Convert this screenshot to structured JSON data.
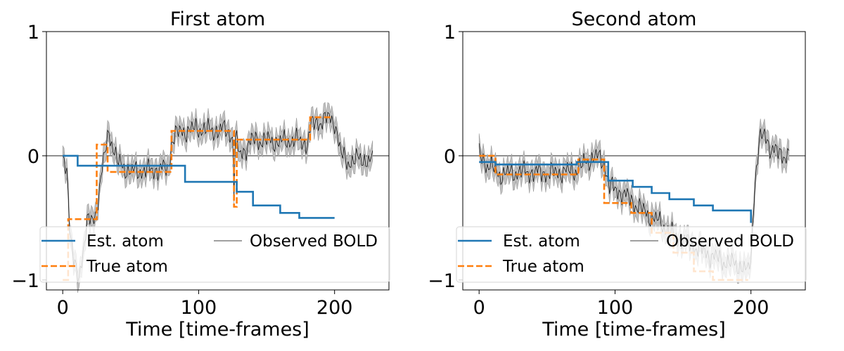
{
  "colors": {
    "est": "#1f77b4",
    "true": "#ff7f0e",
    "observed": "#000000",
    "band": "#bfbfbf"
  },
  "chart_data": [
    {
      "type": "line",
      "title": "First atom",
      "xlabel": "Time [time-frames]",
      "ylabel": "",
      "xlim": [
        -12,
        240
      ],
      "ylim": [
        -1.08,
        1
      ],
      "xticks": [
        0,
        100,
        200
      ],
      "yticks": [
        -1,
        0,
        1
      ],
      "ytick_labels": [
        "−1",
        "0",
        "1"
      ],
      "legend": {
        "placement": "lower-center",
        "entries": [
          "Est. atom",
          "True atom",
          "Observed BOLD"
        ]
      },
      "series": [
        {
          "name": "Est. atom",
          "style": "solid",
          "steps": [
            [
              0,
              0
            ],
            [
              11,
              -0.08
            ],
            [
              90,
              -0.21
            ],
            [
              128,
              -0.29
            ],
            [
              140,
              -0.4
            ],
            [
              160,
              -0.46
            ],
            [
              174,
              -0.5
            ],
            [
              200,
              -0.5
            ]
          ]
        },
        {
          "name": "True atom",
          "style": "dashed",
          "steps": [
            [
              0,
              -1
            ],
            [
              4,
              -0.51
            ],
            [
              25,
              0.09
            ],
            [
              33,
              -0.13
            ],
            [
              80,
              0.2
            ],
            [
              126,
              -0.41
            ],
            [
              128,
              0.13
            ],
            [
              182,
              0.31
            ],
            [
              198,
              0.31
            ]
          ]
        },
        {
          "name": "Observed BOLD",
          "style": "thin",
          "envelope": true,
          "x": [
            0,
            3,
            5,
            8,
            12,
            18,
            24,
            28,
            31,
            34,
            40,
            50,
            60,
            70,
            78,
            80,
            84,
            90,
            100,
            110,
            120,
            125,
            126,
            127,
            128,
            130,
            140,
            150,
            160,
            170,
            180,
            183,
            190,
            195,
            200,
            205,
            210,
            220,
            228
          ],
          "y": [
            0.0,
            -0.08,
            -0.55,
            -0.88,
            -0.97,
            -0.55,
            -0.48,
            -0.2,
            0.02,
            0.2,
            -0.05,
            -0.13,
            -0.12,
            -0.11,
            -0.1,
            0.12,
            0.18,
            0.2,
            0.22,
            0.2,
            0.21,
            0.15,
            -0.25,
            0.1,
            0.12,
            0.0,
            0.13,
            0.12,
            0.11,
            0.13,
            0.1,
            0.25,
            0.28,
            0.3,
            0.28,
            0.0,
            -0.05,
            -0.02,
            -0.05
          ]
        }
      ]
    },
    {
      "type": "line",
      "title": "Second atom",
      "xlabel": "Time [time-frames]",
      "ylabel": "",
      "xlim": [
        -12,
        240
      ],
      "ylim": [
        -1.08,
        1
      ],
      "xticks": [
        0,
        100,
        200
      ],
      "yticks": [
        -1,
        0,
        1
      ],
      "ytick_labels": [
        "−1",
        "0",
        "1"
      ],
      "legend": {
        "placement": "lower-center",
        "entries": [
          "Est. atom",
          "True atom",
          "Observed BOLD"
        ]
      },
      "series": [
        {
          "name": "Est. atom",
          "style": "solid",
          "steps": [
            [
              0,
              -0.05
            ],
            [
              12,
              -0.07
            ],
            [
              72,
              -0.05
            ],
            [
              95,
              -0.2
            ],
            [
              113,
              -0.25
            ],
            [
              127,
              -0.3
            ],
            [
              140,
              -0.35
            ],
            [
              158,
              -0.4
            ],
            [
              172,
              -0.44
            ],
            [
              200,
              -0.54
            ]
          ]
        },
        {
          "name": "True atom",
          "style": "dashed",
          "steps": [
            [
              0,
              0
            ],
            [
              12,
              -0.15
            ],
            [
              73,
              -0.03
            ],
            [
              92,
              -0.38
            ],
            [
              112,
              -0.46
            ],
            [
              127,
              -0.62
            ],
            [
              143,
              -0.78
            ],
            [
              158,
              -0.93
            ],
            [
              172,
              -1.0
            ],
            [
              198,
              -1.0
            ]
          ]
        },
        {
          "name": "Observed BOLD",
          "style": "thin",
          "envelope": true,
          "x": [
            0,
            5,
            10,
            15,
            30,
            50,
            70,
            78,
            85,
            92,
            96,
            105,
            112,
            120,
            128,
            135,
            140,
            150,
            160,
            170,
            180,
            190,
            195,
            198,
            200,
            203,
            206,
            210,
            215,
            220,
            228
          ],
          "y": [
            0.02,
            -0.06,
            -0.1,
            -0.15,
            -0.13,
            -0.14,
            -0.12,
            -0.06,
            0.0,
            -0.05,
            -0.25,
            -0.3,
            -0.36,
            -0.44,
            -0.5,
            -0.55,
            -0.62,
            -0.68,
            -0.74,
            -0.8,
            -0.85,
            -0.88,
            -0.9,
            -0.95,
            -0.8,
            -0.2,
            0.1,
            0.18,
            0.05,
            0.02,
            0.0
          ]
        }
      ]
    }
  ]
}
